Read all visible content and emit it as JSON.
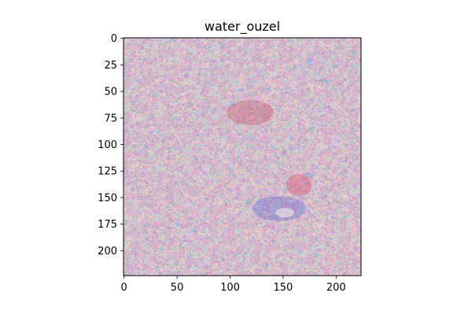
{
  "title": "water_ouzel",
  "image": {
    "description_kind": "activation-maximization visualization",
    "colors": [
      "#a97f86",
      "#9a8a9c",
      "#8c94ad",
      "#c45a6e",
      "#3fd0c0",
      "#2f3fd8",
      "#d9d0c4",
      "#5a2030",
      "#b8b8a0",
      "#e04060"
    ]
  },
  "axes": {
    "x": {
      "range": [
        0,
        224
      ],
      "ticks": [
        0,
        50,
        100,
        150,
        200
      ],
      "tick_labels": [
        "0",
        "50",
        "100",
        "150",
        "200"
      ]
    },
    "y": {
      "range": [
        0,
        224
      ],
      "ticks": [
        0,
        25,
        50,
        75,
        100,
        125,
        150,
        175,
        200
      ],
      "tick_labels": [
        "0",
        "25",
        "50",
        "75",
        "100",
        "125",
        "150",
        "175",
        "200"
      ],
      "inverted": true
    }
  }
}
